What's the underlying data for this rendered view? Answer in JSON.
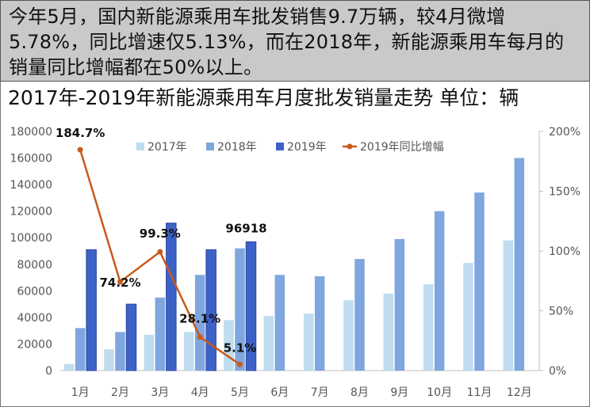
{
  "caption": "今年5月，国内新能源乘用车批发销售9.7万辆，较4月微增5.78%，同比增速仅5.13%，而在2018年，新能源乘用车每月的销量同比增幅都在50%以上。",
  "colors": {
    "s2017": "#bfdcf0",
    "s2018": "#7fa6de",
    "s2019": "#3d62c7",
    "growth": "#c85a1b",
    "caption_bg": "#c9c9c9"
  },
  "chart_data": {
    "type": "bar",
    "title": "2017年-2019年新能源乘用车月度批发销量走势  单位：辆",
    "categories": [
      "1月",
      "2月",
      "3月",
      "4月",
      "5月",
      "6月",
      "7月",
      "8月",
      "9月",
      "10月",
      "11月",
      "12月"
    ],
    "series": [
      {
        "name": "2017年",
        "type": "bar",
        "axis": "left",
        "values": [
          5000,
          16000,
          27000,
          29000,
          38000,
          41000,
          43000,
          53000,
          58000,
          65000,
          81000,
          98000
        ]
      },
      {
        "name": "2018年",
        "type": "bar",
        "axis": "left",
        "values": [
          32000,
          29000,
          55000,
          72000,
          92000,
          72000,
          71000,
          84000,
          99000,
          120000,
          134000,
          160000
        ]
      },
      {
        "name": "2019年",
        "type": "bar",
        "axis": "left",
        "values": [
          91000,
          50000,
          111000,
          91000,
          96918,
          null,
          null,
          null,
          null,
          null,
          null,
          null
        ]
      },
      {
        "name": "2019年同比增幅",
        "type": "line",
        "axis": "right",
        "values": [
          184.7,
          74.2,
          99.3,
          28.1,
          5.1,
          null,
          null,
          null,
          null,
          null,
          null,
          null
        ]
      }
    ],
    "data_labels": [
      {
        "series": "2019年同比增幅",
        "index": 0,
        "text": "184.7%"
      },
      {
        "series": "2019年同比增幅",
        "index": 1,
        "text": "74.2%"
      },
      {
        "series": "2019年同比增幅",
        "index": 2,
        "text": "99.3%"
      },
      {
        "series": "2019年同比增幅",
        "index": 3,
        "text": "28.1%"
      },
      {
        "series": "2019年同比增幅",
        "index": 4,
        "text": "5.1%"
      },
      {
        "series": "2019年",
        "index": 4,
        "text": "96918"
      }
    ],
    "y_left": {
      "ylim": [
        0,
        180000
      ],
      "ticks": [
        0,
        20000,
        40000,
        60000,
        80000,
        100000,
        120000,
        140000,
        160000,
        180000
      ]
    },
    "y_right": {
      "ylim": [
        0,
        200
      ],
      "ticks": [
        "0%",
        "50%",
        "100%",
        "150%",
        "200%"
      ],
      "tick_values": [
        0,
        50,
        100,
        150,
        200
      ]
    },
    "legend": {
      "position": "top-right"
    },
    "grid": false
  }
}
